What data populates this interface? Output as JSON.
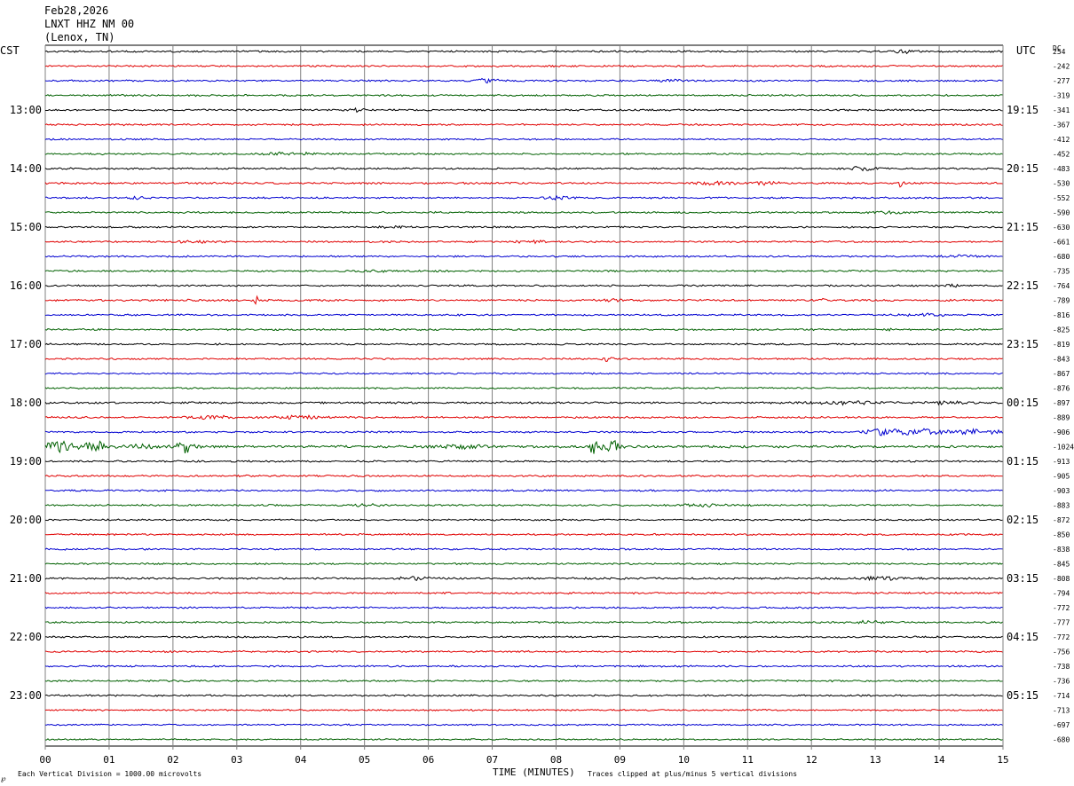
{
  "header": {
    "date": "Feb28,2026",
    "station": "LNXT HHZ NM 00",
    "location": "(Lenox, TN)"
  },
  "left_zone_label": "CST",
  "right_zone_label": "UTC",
  "dc_label": "DC",
  "footer": {
    "scale_note": "Each Vertical Division = 1000.00 microvolts",
    "clip_note": "Traces clipped at plus/minus 5 vertical divisions",
    "corner_mark": "℘"
  },
  "colors": {
    "background": "#ffffff",
    "grid": "#808080",
    "text": "#000000",
    "trace_cycle": [
      "#000000",
      "#e00000",
      "#0000d0",
      "#006000"
    ]
  },
  "chart_data": {
    "type": "line",
    "title": "",
    "xlabel": "TIME (MINUTES)",
    "xlim": [
      0,
      15
    ],
    "x_tick_labels": [
      "00",
      "01",
      "02",
      "03",
      "04",
      "05",
      "06",
      "07",
      "08",
      "09",
      "10",
      "11",
      "12",
      "13",
      "14",
      "15"
    ],
    "trace_interval_minutes": 15,
    "left_hour_labels": [
      "13:00",
      "14:00",
      "15:00",
      "16:00",
      "17:00",
      "18:00",
      "19:00",
      "20:00",
      "21:00",
      "22:00",
      "23:00"
    ],
    "right_hour_labels": [
      "19:15",
      "20:15",
      "21:15",
      "22:15",
      "23:15",
      "00:15",
      "01:15",
      "02:15",
      "03:15",
      "04:15",
      "05:15"
    ],
    "dc_offsets": [
      "254",
      "-242",
      "-277",
      "-319",
      "-341",
      "-367",
      "-412",
      "-452",
      "-483",
      "-530",
      "-552",
      "-590",
      "-630",
      "-661",
      "-680",
      "-735",
      "-764",
      "-789",
      "-816",
      "-825",
      "-819",
      "-843",
      "-867",
      "-876",
      "-897",
      "-889",
      "-906",
      "-1024",
      "-913",
      "-905",
      "-903",
      "-883",
      "-872",
      "-850",
      "-838",
      "-845",
      "-808",
      "-794",
      "-772",
      "-777",
      "-772",
      "-756",
      "-738",
      "-736",
      "-714",
      "-713",
      "-697",
      "-680"
    ],
    "traces": [
      {
        "row": 0,
        "noise": 0.8,
        "events": [
          [
            13.5,
            1.5,
            0.25
          ]
        ]
      },
      {
        "row": 1,
        "noise": 0.8,
        "events": []
      },
      {
        "row": 2,
        "noise": 0.8,
        "events": [
          [
            6.9,
            2.0,
            0.2
          ],
          [
            9.8,
            1.2,
            0.2
          ]
        ]
      },
      {
        "row": 3,
        "noise": 0.8,
        "events": []
      },
      {
        "row": 4,
        "noise": 0.8,
        "events": [
          [
            4.9,
            1.5,
            0.15
          ]
        ]
      },
      {
        "row": 5,
        "noise": 0.8,
        "events": [
          [
            1.1,
            1.2,
            0.1
          ]
        ]
      },
      {
        "row": 6,
        "noise": 0.7,
        "events": []
      },
      {
        "row": 7,
        "noise": 0.8,
        "events": [
          [
            3.8,
            1.5,
            0.4
          ]
        ]
      },
      {
        "row": 8,
        "noise": 0.8,
        "events": [
          [
            12.8,
            1.8,
            0.25
          ]
        ]
      },
      {
        "row": 9,
        "noise": 0.9,
        "events": [
          [
            10.5,
            1.5,
            0.3
          ],
          [
            11.3,
            1.5,
            0.2
          ],
          [
            13.4,
            4.0,
            0.05
          ]
        ]
      },
      {
        "row": 10,
        "noise": 0.8,
        "events": [
          [
            1.4,
            1.5,
            0.15
          ],
          [
            8.0,
            1.2,
            0.2
          ]
        ]
      },
      {
        "row": 11,
        "noise": 0.8,
        "events": [
          [
            13.2,
            1.2,
            0.3
          ]
        ]
      },
      {
        "row": 12,
        "noise": 0.8,
        "events": [
          [
            5.5,
            1.3,
            0.2
          ]
        ]
      },
      {
        "row": 13,
        "noise": 0.8,
        "events": [
          [
            2.4,
            1.3,
            0.3
          ],
          [
            7.6,
            1.3,
            0.3
          ]
        ]
      },
      {
        "row": 14,
        "noise": 0.8,
        "events": [
          [
            14.3,
            1.2,
            0.3
          ]
        ]
      },
      {
        "row": 15,
        "noise": 0.8,
        "events": [
          [
            5.1,
            1.2,
            0.2
          ]
        ]
      },
      {
        "row": 16,
        "noise": 0.8,
        "events": [
          [
            14.2,
            1.3,
            0.1
          ]
        ]
      },
      {
        "row": 17,
        "noise": 0.9,
        "events": [
          [
            3.3,
            5.0,
            0.03
          ],
          [
            8.8,
            1.8,
            0.2
          ],
          [
            12.2,
            1.5,
            0.05
          ]
        ]
      },
      {
        "row": 18,
        "noise": 0.8,
        "events": [
          [
            13.8,
            1.2,
            0.3
          ]
        ]
      },
      {
        "row": 19,
        "noise": 0.8,
        "events": [
          [
            13.2,
            3.0,
            0.05
          ]
        ]
      },
      {
        "row": 20,
        "noise": 0.8,
        "events": []
      },
      {
        "row": 21,
        "noise": 0.8,
        "events": [
          [
            8.8,
            2.5,
            0.08
          ]
        ]
      },
      {
        "row": 22,
        "noise": 0.7,
        "events": []
      },
      {
        "row": 23,
        "noise": 0.7,
        "events": []
      },
      {
        "row": 24,
        "noise": 0.9,
        "events": [
          [
            12.6,
            1.3,
            0.6
          ],
          [
            14.1,
            2.0,
            0.3
          ]
        ]
      },
      {
        "row": 25,
        "noise": 0.9,
        "events": [
          [
            2.6,
            1.8,
            0.3
          ],
          [
            4.0,
            1.8,
            0.4
          ]
        ]
      },
      {
        "row": 26,
        "noise": 0.8,
        "events": [
          [
            13.1,
            3.5,
            0.25
          ],
          [
            13.7,
            3.0,
            0.35
          ],
          [
            14.6,
            2.5,
            0.4
          ]
        ]
      },
      {
        "row": 27,
        "noise": 1.2,
        "events": [
          [
            0.2,
            5.5,
            0.25
          ],
          [
            0.65,
            4.0,
            0.1
          ],
          [
            0.85,
            5.5,
            0.08
          ],
          [
            2.2,
            6.5,
            0.15
          ],
          [
            8.6,
            8.0,
            0.1
          ],
          [
            8.9,
            6.0,
            0.12
          ],
          [
            1.5,
            1.8,
            0.3
          ],
          [
            6.5,
            1.5,
            0.4
          ]
        ]
      },
      {
        "row": 28,
        "noise": 0.8,
        "events": []
      },
      {
        "row": 29,
        "noise": 0.8,
        "events": []
      },
      {
        "row": 30,
        "noise": 0.8,
        "events": []
      },
      {
        "row": 31,
        "noise": 0.8,
        "events": [
          [
            5.0,
            1.2,
            0.2
          ],
          [
            10.3,
            1.5,
            0.3
          ]
        ]
      },
      {
        "row": 32,
        "noise": 0.8,
        "events": []
      },
      {
        "row": 33,
        "noise": 0.8,
        "events": []
      },
      {
        "row": 34,
        "noise": 0.8,
        "events": []
      },
      {
        "row": 35,
        "noise": 0.8,
        "events": []
      },
      {
        "row": 36,
        "noise": 0.9,
        "events": [
          [
            5.8,
            1.3,
            0.3
          ],
          [
            13.1,
            1.3,
            0.4
          ]
        ]
      },
      {
        "row": 37,
        "noise": 0.8,
        "events": []
      },
      {
        "row": 38,
        "noise": 0.8,
        "events": []
      },
      {
        "row": 39,
        "noise": 0.8,
        "events": [
          [
            12.9,
            1.3,
            0.3
          ]
        ]
      },
      {
        "row": 40,
        "noise": 0.8,
        "events": []
      },
      {
        "row": 41,
        "noise": 0.8,
        "events": []
      },
      {
        "row": 42,
        "noise": 0.8,
        "events": []
      },
      {
        "row": 43,
        "noise": 0.8,
        "events": []
      },
      {
        "row": 44,
        "noise": 0.8,
        "events": []
      },
      {
        "row": 45,
        "noise": 0.7,
        "events": []
      },
      {
        "row": 46,
        "noise": 0.7,
        "events": []
      },
      {
        "row": 47,
        "noise": 0.7,
        "events": []
      }
    ]
  }
}
